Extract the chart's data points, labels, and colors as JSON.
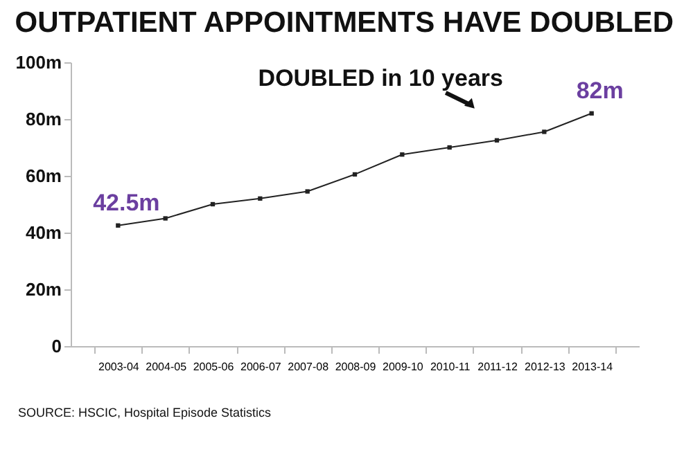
{
  "chart_data": {
    "type": "line",
    "title": "OUTPATIENT APPOINTMENTS HAVE DOUBLED",
    "categories": [
      "2003-04",
      "2004-05",
      "2005-06",
      "2006-07",
      "2007-08",
      "2008-09",
      "2009-10",
      "2010-11",
      "2011-12",
      "2012-13",
      "2013-14"
    ],
    "series": [
      {
        "color": "#222222",
        "values": [
          42.5,
          45,
          50,
          52,
          54.5,
          60.5,
          67.5,
          70,
          72.5,
          75.5,
          82
        ]
      }
    ],
    "ylim": [
      0,
      100
    ],
    "yticks": [
      0,
      {
        "value": 20,
        "label": "20m"
      },
      {
        "value": 40,
        "label": "40m"
      },
      {
        "value": 60,
        "label": "60m"
      },
      {
        "value": 80,
        "label": "80m"
      },
      {
        "value": 100,
        "label": "100m"
      }
    ],
    "grid": false,
    "marker": "square",
    "line_style": "solid",
    "annotations": [
      {
        "text": "42.5m",
        "x": "2003-04",
        "y": 42.5
      },
      {
        "text": "82m",
        "x": "2013-14",
        "y": 82
      },
      "DOUBLED in 10 years",
      "SOURCE: HSCIC, Hospital Episode Statistics"
    ]
  }
}
